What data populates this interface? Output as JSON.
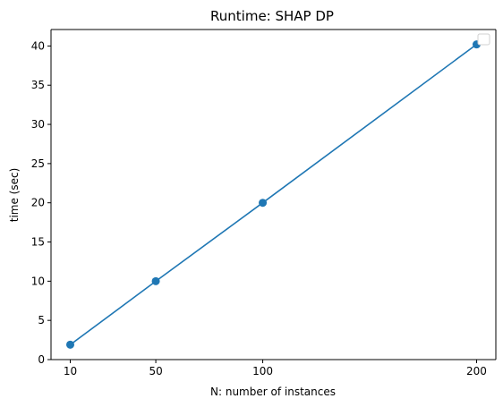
{
  "chart_data": {
    "type": "line",
    "title": "Runtime: SHAP DP",
    "xlabel": "N: number of instances",
    "ylabel": "time (sec)",
    "x": [
      10,
      50,
      100,
      200
    ],
    "series": [
      {
        "values": [
          1.9,
          10.0,
          20.0,
          40.2
        ],
        "color": "#1f77b4",
        "marker": "circle"
      }
    ],
    "xlim": [
      1,
      209
    ],
    "ylim": [
      0,
      42.1
    ],
    "xticks": [
      10,
      50,
      100,
      200
    ],
    "yticks": [
      0,
      5,
      10,
      15,
      20,
      25,
      30,
      35,
      40
    ],
    "grid": false,
    "legend": {
      "placement": "top-right",
      "entries": []
    }
  }
}
